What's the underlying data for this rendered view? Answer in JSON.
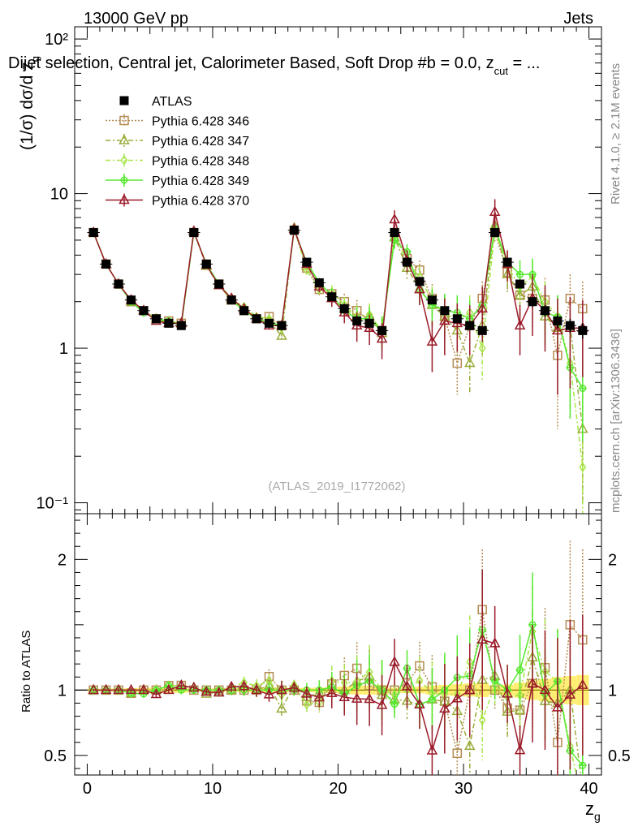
{
  "header": {
    "left": "13000 GeV pp",
    "right": "Jets",
    "title": "Dijet selection, Central jet, Calorimeter Based, Soft Drop #b = 0.0, z",
    "title_sub": "cut",
    "title_tail": " = ..."
  },
  "side_labels": {
    "rivet": "Rivet 4.1.0, ≥ 2.1M events",
    "mcplots": "mcplots.cern.ch [arXiv:1306.3436]"
  },
  "watermark": "(ATLAS_2019_I1772062)",
  "colors": {
    "ATLAS": "#000000",
    "Pythia 6.428 346": "#b58c52",
    "Pythia 6.428 347": "#9aab38",
    "Pythia 6.428 348": "#a8e648",
    "Pythia 6.428 349": "#55e82e",
    "Pythia 6.428 370": "#9b1b2a"
  },
  "chart_data": [
    {
      "type": "line",
      "panel": "main",
      "ylabel": "(1/σ) dσ/d z_g",
      "ylabel_main": "(1/σ) dσ/d z",
      "ylabel_sub": "g",
      "yscale": "log",
      "ylim": [
        0.085,
        120
      ],
      "xlim": [
        -1,
        41
      ],
      "x_ticks": [
        0,
        10,
        20,
        30,
        40
      ],
      "x_tick_labels": [
        "0",
        "10",
        "20",
        "30",
        "40"
      ],
      "y_tick_labels": [
        "10⁻¹",
        "1",
        "10",
        "10²"
      ],
      "y_tick_values": [
        0.1,
        1,
        10,
        100
      ],
      "x": [
        0.5,
        1.5,
        2.5,
        3.5,
        4.5,
        5.5,
        6.5,
        7.5,
        8.5,
        9.5,
        10.5,
        11.5,
        12.5,
        13.5,
        14.5,
        15.5,
        16.5,
        17.5,
        18.5,
        19.5,
        20.5,
        21.5,
        22.5,
        23.5,
        24.5,
        25.5,
        26.5,
        27.5,
        28.5,
        29.5,
        30.5,
        31.5,
        32.5,
        33.5,
        34.5,
        35.5,
        36.5,
        37.5,
        38.5,
        39.5
      ],
      "series": [
        {
          "name": "ATLAS",
          "style": "data",
          "values": [
            5.6,
            3.5,
            2.6,
            2.05,
            1.75,
            1.55,
            1.45,
            1.4,
            5.6,
            3.5,
            2.6,
            2.05,
            1.75,
            1.55,
            1.45,
            1.4,
            5.8,
            3.6,
            2.65,
            2.15,
            1.8,
            1.5,
            1.45,
            1.3,
            5.6,
            3.6,
            2.7,
            2.05,
            1.75,
            1.55,
            1.4,
            1.3,
            5.6,
            3.6,
            2.6,
            2.0,
            1.75,
            1.5,
            1.4,
            1.3
          ],
          "errors": [
            0.05,
            0.04,
            0.03,
            0.03,
            0.03,
            0.03,
            0.03,
            0.03,
            0.06,
            0.04,
            0.04,
            0.03,
            0.03,
            0.03,
            0.03,
            0.03,
            0.08,
            0.06,
            0.05,
            0.05,
            0.05,
            0.05,
            0.05,
            0.05,
            0.1,
            0.08,
            0.07,
            0.07,
            0.07,
            0.07,
            0.07,
            0.07,
            0.2,
            0.15,
            0.15,
            0.15,
            0.15,
            0.15,
            0.15,
            0.15
          ]
        },
        {
          "name": "Pythia 6.428 346",
          "style": "dotted",
          "marker": "square",
          "values": [
            5.6,
            3.5,
            2.6,
            2.0,
            1.75,
            1.55,
            1.5,
            1.45,
            5.6,
            3.5,
            2.6,
            2.05,
            1.75,
            1.55,
            1.6,
            1.4,
            5.8,
            3.3,
            2.4,
            2.25,
            2.0,
            1.75,
            1.5,
            1.3,
            5.6,
            3.8,
            3.2,
            2.1,
            1.6,
            0.8,
            1.4,
            2.1,
            5.6,
            3.1,
            2.2,
            2.1,
            2.05,
            0.9,
            2.1,
            1.8
          ],
          "errors": [
            0.05,
            0.04,
            0.04,
            0.04,
            0.04,
            0.04,
            0.04,
            0.04,
            0.1,
            0.08,
            0.08,
            0.08,
            0.08,
            0.08,
            0.08,
            0.1,
            0.25,
            0.2,
            0.2,
            0.25,
            0.25,
            0.3,
            0.3,
            0.3,
            0.6,
            0.5,
            0.5,
            0.5,
            0.5,
            0.3,
            0.5,
            0.6,
            0.8,
            0.7,
            0.6,
            0.7,
            0.8,
            0.6,
            0.9,
            0.9
          ]
        },
        {
          "name": "Pythia 6.428 347",
          "style": "dashdot",
          "marker": "triangle",
          "values": [
            5.6,
            3.5,
            2.6,
            2.0,
            1.75,
            1.55,
            1.45,
            1.45,
            5.7,
            3.4,
            2.55,
            2.05,
            1.8,
            1.55,
            1.5,
            1.2,
            6.0,
            3.4,
            2.6,
            2.1,
            1.8,
            1.6,
            1.6,
            1.25,
            5.2,
            3.3,
            2.4,
            1.9,
            1.6,
            1.3,
            0.8,
            1.4,
            6.2,
            3.0,
            2.2,
            2.5,
            1.6,
            1.35,
            1.4,
            0.3
          ],
          "errors": [
            0.05,
            0.04,
            0.04,
            0.04,
            0.04,
            0.04,
            0.04,
            0.04,
            0.1,
            0.08,
            0.08,
            0.08,
            0.08,
            0.08,
            0.08,
            0.1,
            0.25,
            0.2,
            0.2,
            0.25,
            0.25,
            0.3,
            0.3,
            0.3,
            0.6,
            0.5,
            0.5,
            0.5,
            0.5,
            0.4,
            0.3,
            0.5,
            0.8,
            0.7,
            0.6,
            0.7,
            0.6,
            0.5,
            0.6,
            0.2
          ]
        },
        {
          "name": "Pythia 6.428 348",
          "style": "dashdot",
          "marker": "diamond",
          "values": [
            5.6,
            3.5,
            2.6,
            2.0,
            1.75,
            1.55,
            1.5,
            1.45,
            5.7,
            3.5,
            2.6,
            2.1,
            1.85,
            1.6,
            1.55,
            1.35,
            6.0,
            3.2,
            2.4,
            2.3,
            1.9,
            1.6,
            1.65,
            1.3,
            5.4,
            3.6,
            2.9,
            2.0,
            1.7,
            1.5,
            1.7,
            1.0,
            5.8,
            3.4,
            2.5,
            2.9,
            2.0,
            1.6,
            0.8,
            0.17
          ],
          "errors": [
            0.05,
            0.04,
            0.04,
            0.04,
            0.04,
            0.04,
            0.04,
            0.04,
            0.1,
            0.08,
            0.08,
            0.08,
            0.08,
            0.08,
            0.08,
            0.1,
            0.25,
            0.2,
            0.2,
            0.25,
            0.25,
            0.3,
            0.3,
            0.3,
            0.6,
            0.5,
            0.5,
            0.5,
            0.5,
            0.4,
            0.5,
            0.4,
            0.8,
            0.7,
            0.6,
            0.7,
            0.7,
            0.6,
            0.4,
            0.12
          ]
        },
        {
          "name": "Pythia 6.428 349",
          "style": "solid",
          "marker": "cross",
          "values": [
            5.6,
            3.5,
            2.6,
            2.0,
            1.7,
            1.55,
            1.5,
            1.4,
            5.6,
            3.5,
            2.6,
            2.05,
            1.75,
            1.55,
            1.45,
            1.4,
            5.8,
            3.6,
            2.65,
            2.2,
            1.75,
            1.55,
            1.55,
            1.3,
            5.0,
            4.2,
            2.4,
            1.9,
            1.75,
            1.7,
            1.55,
            1.9,
            6.0,
            3.6,
            3.0,
            3.0,
            1.7,
            1.6,
            0.75,
            0.55
          ],
          "errors": [
            0.05,
            0.04,
            0.04,
            0.04,
            0.04,
            0.04,
            0.04,
            0.04,
            0.1,
            0.08,
            0.08,
            0.08,
            0.08,
            0.08,
            0.08,
            0.1,
            0.25,
            0.2,
            0.2,
            0.25,
            0.25,
            0.3,
            0.3,
            0.3,
            0.6,
            0.5,
            0.5,
            0.5,
            0.5,
            0.5,
            0.5,
            0.6,
            0.8,
            0.7,
            0.7,
            0.8,
            0.6,
            0.6,
            0.4,
            0.3
          ]
        },
        {
          "name": "Pythia 6.428 370",
          "style": "solid",
          "marker": "triangle",
          "values": [
            5.6,
            3.5,
            2.6,
            2.05,
            1.75,
            1.5,
            1.45,
            1.45,
            5.7,
            3.45,
            2.55,
            2.1,
            1.8,
            1.55,
            1.4,
            1.4,
            5.9,
            3.5,
            2.5,
            2.1,
            1.7,
            1.4,
            1.35,
            1.15,
            6.8,
            3.7,
            2.4,
            1.1,
            1.5,
            1.45,
            1.4,
            1.8,
            7.6,
            3.5,
            1.4,
            2.1,
            1.75,
            1.3,
            1.35,
            1.35
          ],
          "errors": [
            0.05,
            0.04,
            0.04,
            0.04,
            0.04,
            0.04,
            0.04,
            0.04,
            0.1,
            0.08,
            0.08,
            0.08,
            0.08,
            0.08,
            0.08,
            0.1,
            0.25,
            0.2,
            0.2,
            0.25,
            0.25,
            0.3,
            0.3,
            0.3,
            1.0,
            0.6,
            0.5,
            0.4,
            0.6,
            0.5,
            0.5,
            0.7,
            1.6,
            0.8,
            0.5,
            0.9,
            0.8,
            0.8,
            0.8,
            0.7
          ]
        }
      ],
      "legend": [
        "ATLAS",
        "Pythia 6.428 346",
        "Pythia 6.428 347",
        "Pythia 6.428 348",
        "Pythia 6.428 349",
        "Pythia 6.428 370"
      ],
      "legend_position": "top-left"
    },
    {
      "type": "line",
      "panel": "ratio",
      "ylabel": "Ratio to ATLAS",
      "xlabel": "z_g",
      "xlabel_main": "z",
      "xlabel_sub": "g",
      "ylim": [
        0.35,
        2.35
      ],
      "y_tick_values": [
        0.5,
        1,
        2
      ],
      "y_tick_labels": [
        "0.5",
        "1",
        "2"
      ],
      "reference_line": 1
    }
  ]
}
